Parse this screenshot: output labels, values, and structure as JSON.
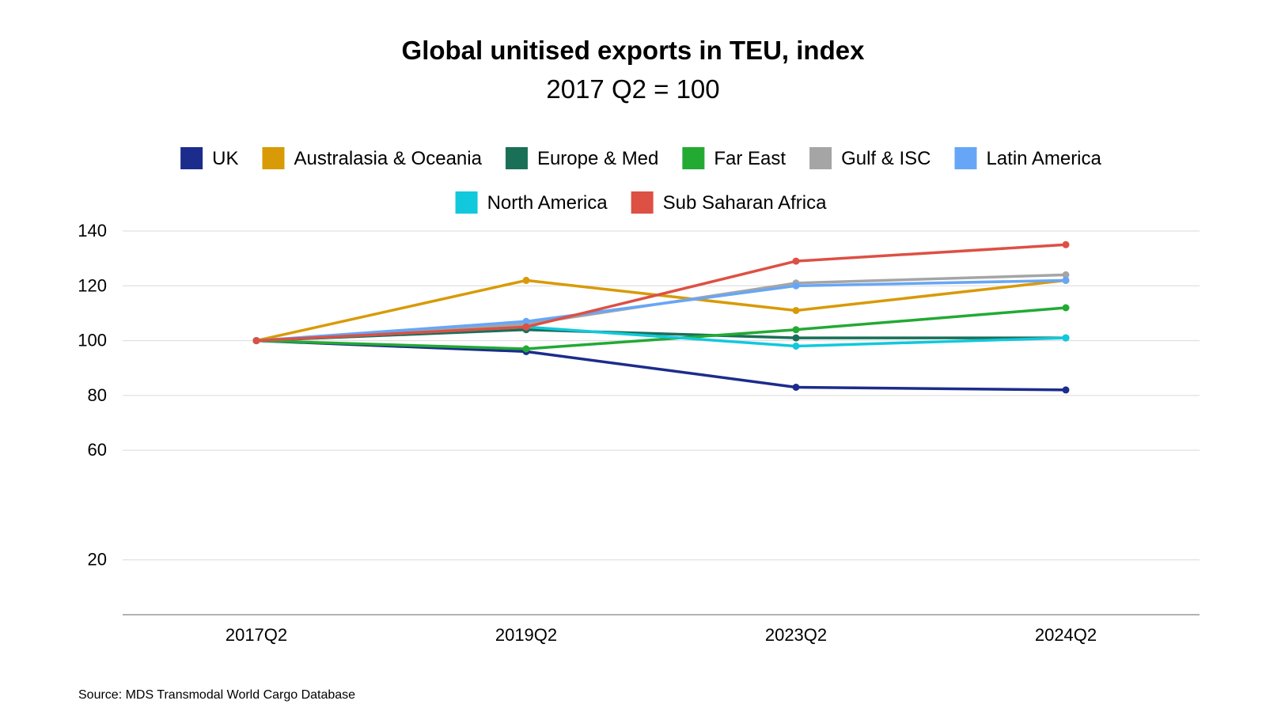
{
  "chart_data": {
    "type": "line",
    "title": "Global unitised exports in TEU, index",
    "subtitle": "2017 Q2 = 100",
    "xlabel": "",
    "ylabel": "",
    "categories": [
      "2017Q2",
      "2019Q2",
      "2023Q2",
      "2024Q2"
    ],
    "y_ticks": [
      20,
      60,
      80,
      100,
      120,
      140
    ],
    "ylim": [
      0,
      140
    ],
    "grid": true,
    "legend_position": "top",
    "series": [
      {
        "name": "UK",
        "color": "#1c2c8c",
        "values": [
          100,
          96,
          83,
          82
        ]
      },
      {
        "name": "Australasia & Oceania",
        "color": "#d89a06",
        "values": [
          100,
          122,
          111,
          122
        ]
      },
      {
        "name": "Europe & Med",
        "color": "#1a6f57",
        "values": [
          100,
          104,
          101,
          101
        ]
      },
      {
        "name": "Far East",
        "color": "#22aa33",
        "values": [
          100,
          97,
          104,
          112
        ]
      },
      {
        "name": "Gulf & ISC",
        "color": "#a5a5a5",
        "values": [
          100,
          106,
          121,
          124
        ]
      },
      {
        "name": "Latin America",
        "color": "#67a6f7",
        "values": [
          100,
          107,
          120,
          122
        ]
      },
      {
        "name": "North America",
        "color": "#11c8dc",
        "values": [
          100,
          105,
          98,
          101
        ]
      },
      {
        "name": "Sub Saharan Africa",
        "color": "#dd5044",
        "values": [
          100,
          105,
          129,
          135
        ]
      }
    ]
  },
  "source": "Source: MDS Transmodal World Cargo Database"
}
